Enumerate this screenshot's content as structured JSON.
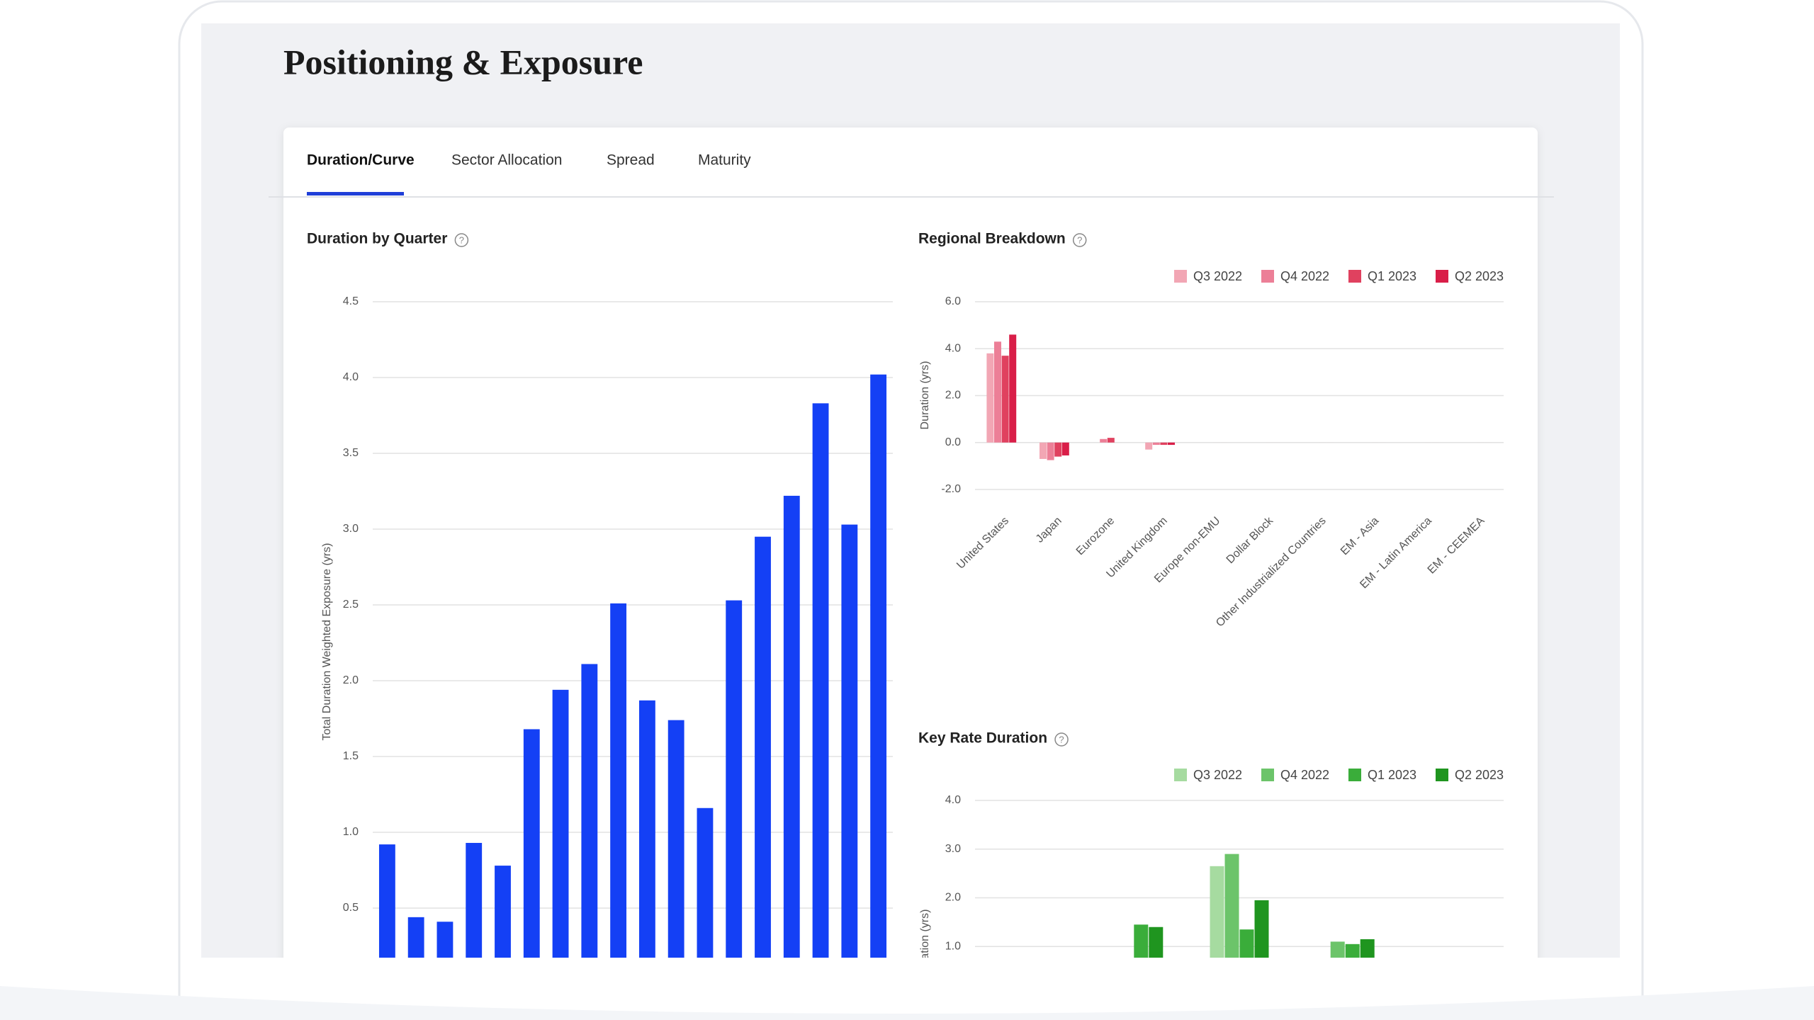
{
  "page_title": "Positioning & Exposure",
  "tabs": [
    "Duration/Curve",
    "Sector Allocation",
    "Spread",
    "Maturity"
  ],
  "chart_data": [
    {
      "type": "bar",
      "title": "Duration by Quarter",
      "ylabel": "Total Duration Weighted Exposure (yrs)",
      "categories": [
        null,
        null,
        null,
        null,
        null,
        null,
        null,
        null,
        null,
        null,
        null,
        null,
        null,
        null,
        null,
        null,
        null,
        null
      ],
      "values": [
        0.92,
        0.44,
        0.41,
        0.93,
        0.78,
        1.68,
        1.94,
        2.11,
        2.51,
        1.87,
        1.74,
        1.16,
        2.53,
        2.95,
        3.22,
        3.83,
        3.03,
        4.02
      ],
      "color": "#1440f5",
      "ylim": [
        0,
        4.5
      ],
      "yticks": [
        0.5,
        {
          "value": 1,
          "label": "1.0"
        },
        1.5,
        {
          "value": 2,
          "label": "2.0"
        },
        2.5,
        {
          "value": 3,
          "label": "3.0"
        },
        3.5,
        {
          "value": 4,
          "label": "4.0"
        },
        4.5
      ],
      "grid": true
    },
    {
      "type": "grouped-bar",
      "title": "Regional Breakdown",
      "ylabel": "Duration (yrs)",
      "categories": [
        "United States",
        "Japan",
        "Eurozone",
        "United Kingdom",
        "Europe non-EMU",
        "Dollar Block",
        "Other Industrialized Countries",
        "EM - Asia",
        "EM - Latin America",
        "EM - CEEMEA"
      ],
      "series": [
        {
          "name": "Q3 2022",
          "color": "#f2a6b4",
          "values": [
            3.8,
            -0.7,
            0,
            -0.3,
            0,
            0,
            0,
            0,
            0,
            0
          ]
        },
        {
          "name": "Q4 2022",
          "color": "#ec7f97",
          "values": [
            4.3,
            -0.75,
            0.15,
            -0.1,
            0,
            0,
            0,
            0,
            0,
            0
          ]
        },
        {
          "name": "Q1 2023",
          "color": "#e0415f",
          "values": [
            3.7,
            -0.6,
            0.2,
            -0.1,
            0,
            0,
            0,
            0,
            0,
            0
          ]
        },
        {
          "name": "Q2 2023",
          "color": "#d91e48",
          "values": [
            4.6,
            -0.55,
            0,
            -0.1,
            0,
            0,
            0,
            0,
            0,
            0
          ]
        }
      ],
      "ylim": [
        -2,
        6
      ],
      "yticks": [
        {
          "value": -2,
          "label": "-2.0"
        },
        {
          "value": 0,
          "label": "0.0"
        },
        {
          "value": 2,
          "label": "2.0"
        },
        {
          "value": 4,
          "label": "4.0"
        },
        {
          "value": 6,
          "label": "6.0"
        }
      ],
      "grid": true,
      "legend": "top-right"
    },
    {
      "type": "grouped-bar",
      "title": "Key Rate Duration",
      "ylabel": "Duration (yrs)",
      "categories": [
        null,
        null,
        null,
        null,
        null
      ],
      "series": [
        {
          "name": "Q3 2022",
          "color": "#a6dba0",
          "values": [
            0,
            0,
            2.65,
            0,
            0
          ]
        },
        {
          "name": "Q4 2022",
          "color": "#6cc46a",
          "values": [
            0,
            0,
            2.9,
            1.1,
            0
          ]
        },
        {
          "name": "Q1 2023",
          "color": "#3aad3a",
          "values": [
            0,
            1.45,
            1.35,
            1.05,
            0
          ]
        },
        {
          "name": "Q2 2023",
          "color": "#1f951f",
          "values": [
            0,
            1.4,
            1.95,
            1.15,
            0
          ]
        }
      ],
      "ylim": [
        0,
        4
      ],
      "yticks": [
        {
          "value": 1,
          "label": "1.0"
        },
        {
          "value": 2,
          "label": "2.0"
        },
        {
          "value": 3,
          "label": "3.0"
        },
        {
          "value": 4,
          "label": "4.0"
        }
      ],
      "grid": true,
      "legend": "top-right"
    }
  ]
}
